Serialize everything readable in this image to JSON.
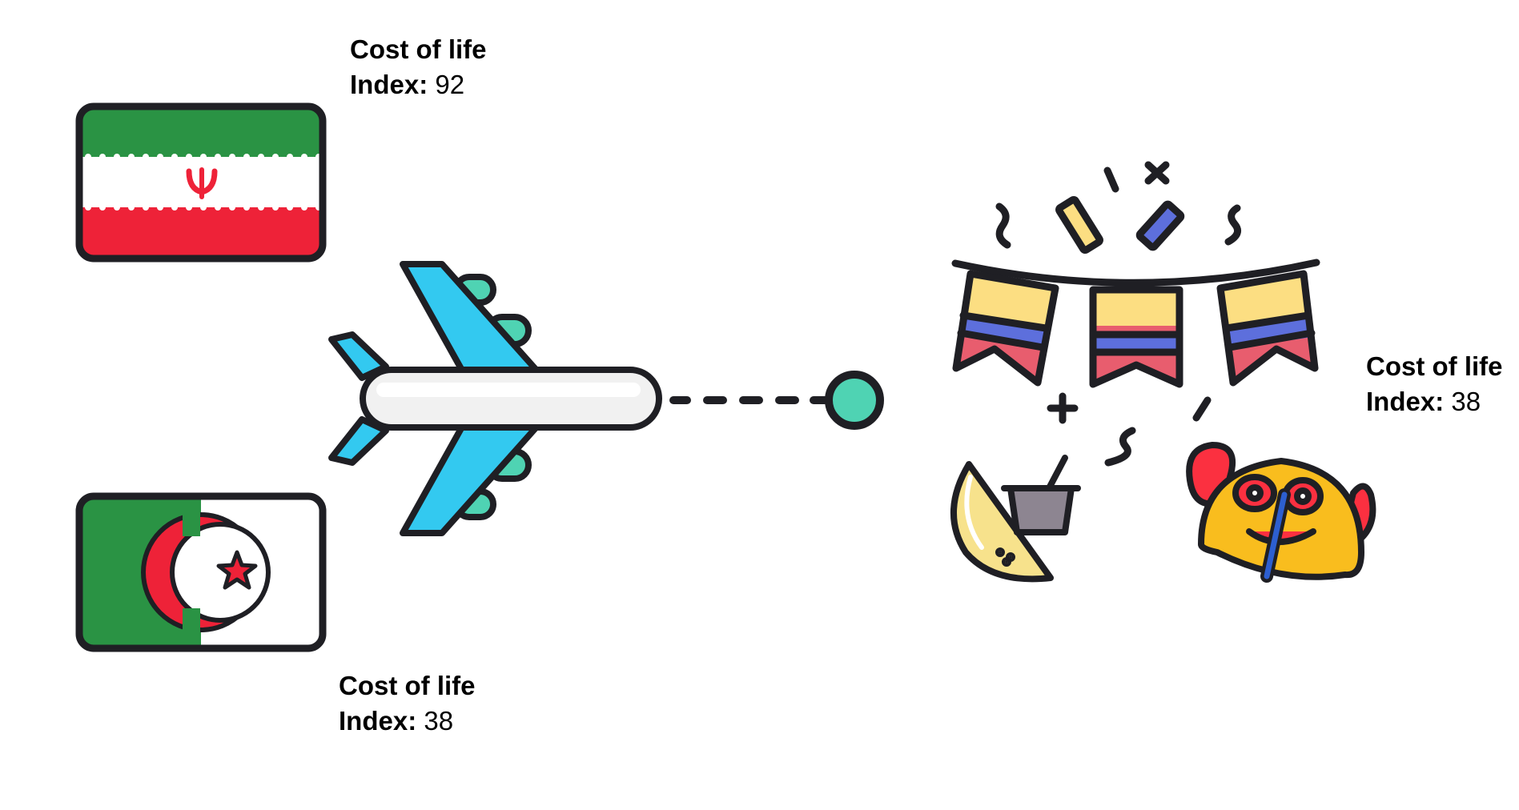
{
  "labels": [
    {
      "id": "iran",
      "line1": "Cost of life",
      "key": "Index:",
      "value": "92"
    },
    {
      "id": "algeria",
      "line1": "Cost of life",
      "key": "Index:",
      "value": "38"
    },
    {
      "id": "colombia",
      "line1": "Cost of life",
      "key": "Index:",
      "value": "38"
    }
  ],
  "icons": {
    "flag_iran": "iran-flag-icon",
    "flag_algeria": "algeria-flag-icon",
    "airplane": "airplane-icon",
    "destination": "destination-dot-icon",
    "festival": "colombian-carnival-bunting-icon",
    "food": "arepa-and-sauce-icon",
    "mask": "carnival-mask-icon"
  },
  "colors": {
    "outline": "#1f1f24",
    "green": "#2a9344",
    "red": "#ee2238",
    "plane_blue": "#33c9f0",
    "mint": "#4fd3b3",
    "yellow": "#fcde82",
    "blue_stripe": "#5d6fdc",
    "pink_red": "#e85d6e"
  }
}
